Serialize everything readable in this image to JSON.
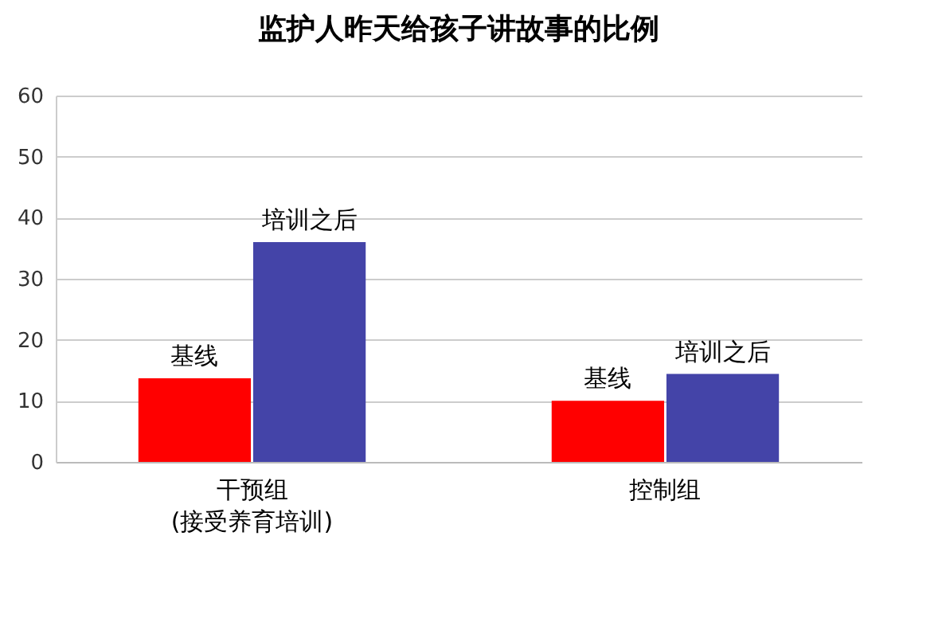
{
  "chart_data": {
    "type": "bar",
    "title": "监护人昨天给孩子讲故事的比例",
    "categories": [
      "干预组\n(接受养育培训)",
      "控制组"
    ],
    "series": [
      {
        "name": "基线",
        "color": "#ff0000",
        "values": [
          13.7,
          10
        ]
      },
      {
        "name": "培训之后",
        "color": "#4444a8",
        "values": [
          36,
          14.4
        ]
      }
    ],
    "ylim": [
      0,
      60
    ],
    "yticks": [
      0,
      10,
      20,
      30,
      40,
      50,
      60
    ],
    "grid": "y"
  }
}
